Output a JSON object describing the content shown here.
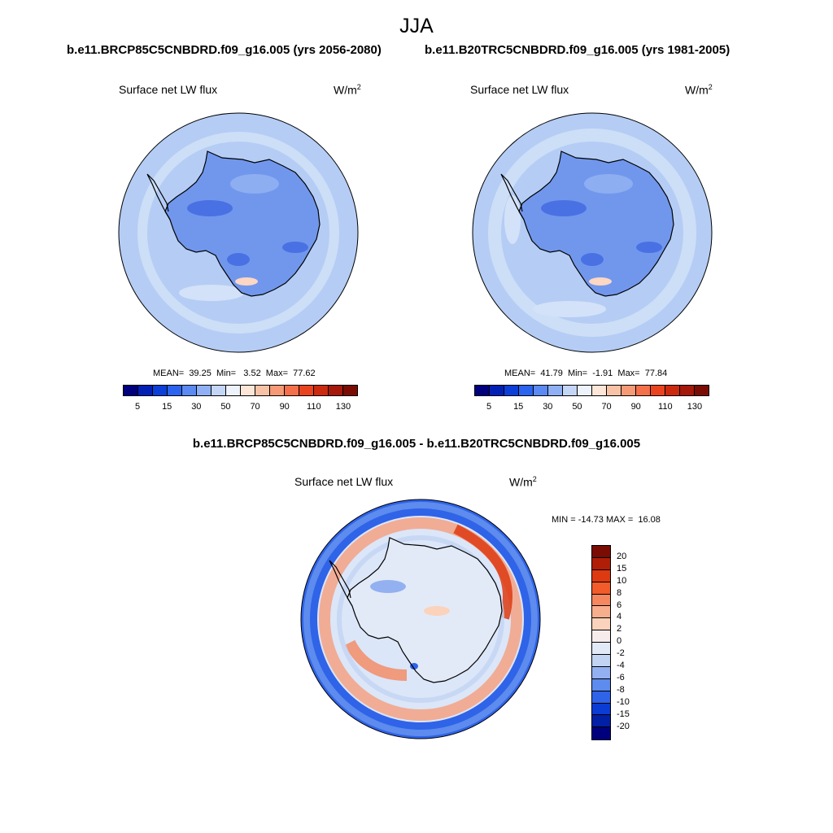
{
  "page": {
    "title": "JJA",
    "left_case": "b.e11.BRCP85C5CNBDRD.f09_g16.005 (yrs 2056-2080)",
    "right_case": "b.e11.B20TRC5CNBDRD.f09_g16.005 (yrs 1981-2005)",
    "diff_title": "b.e11.BRCP85C5CNBDRD.f09_g16.005 - b.e11.B20TRC5CNBDRD.f09_g16.005"
  },
  "panels": {
    "left": {
      "var_label": "Surface net LW flux",
      "unit": "W/m",
      "unit_sup": "2",
      "stats": "MEAN=  39.25  Min=   3.52  Max=  77.62"
    },
    "right": {
      "var_label": "Surface net LW flux",
      "unit": "W/m",
      "unit_sup": "2",
      "stats": "MEAN=  41.79  Min=  -1.91  Max=  77.84"
    },
    "diff": {
      "var_label": "Surface net LW flux",
      "unit": "W/m",
      "unit_sup": "2",
      "stats": "MIN = -14.73 MAX =  16.08"
    }
  },
  "colorbar_abs": {
    "labels": [
      "5",
      "15",
      "30",
      "50",
      "70",
      "90",
      "110",
      "130"
    ],
    "colors": [
      "#00007f",
      "#0320b5",
      "#0b3fd8",
      "#2a63ee",
      "#5b8af2",
      "#8fb0f5",
      "#c3d6f6",
      "#eef3fb",
      "#fde6d8",
      "#f7c2a6",
      "#f59a75",
      "#f4704a",
      "#ea4320",
      "#cc2a0e",
      "#a5180a",
      "#7a0c04"
    ]
  },
  "colorbar_diff": {
    "labels": [
      "20",
      "15",
      "10",
      "8",
      "6",
      "4",
      "2",
      "0",
      "-2",
      "-4",
      "-6",
      "-8",
      "-10",
      "-15",
      "-20"
    ],
    "colors": [
      "#7a0c04",
      "#b01e07",
      "#dd3a12",
      "#f25b2a",
      "#f5875f",
      "#f7ae8c",
      "#fbd2bb",
      "#f7ecec",
      "#e3eaf7",
      "#c3d4f3",
      "#93b1f1",
      "#5d8bee",
      "#2f63e8",
      "#0b3cd4",
      "#0120a5",
      "#00007f"
    ]
  },
  "colors": {
    "abs_background": "#b5cdf5",
    "abs_ice": "#7197ed",
    "abs_ice_dark": "#4a71e3",
    "diff_background": "#dbe6f8",
    "diff_blue_ring": "#2f63e8",
    "diff_red_ring": "#f5a184"
  }
}
